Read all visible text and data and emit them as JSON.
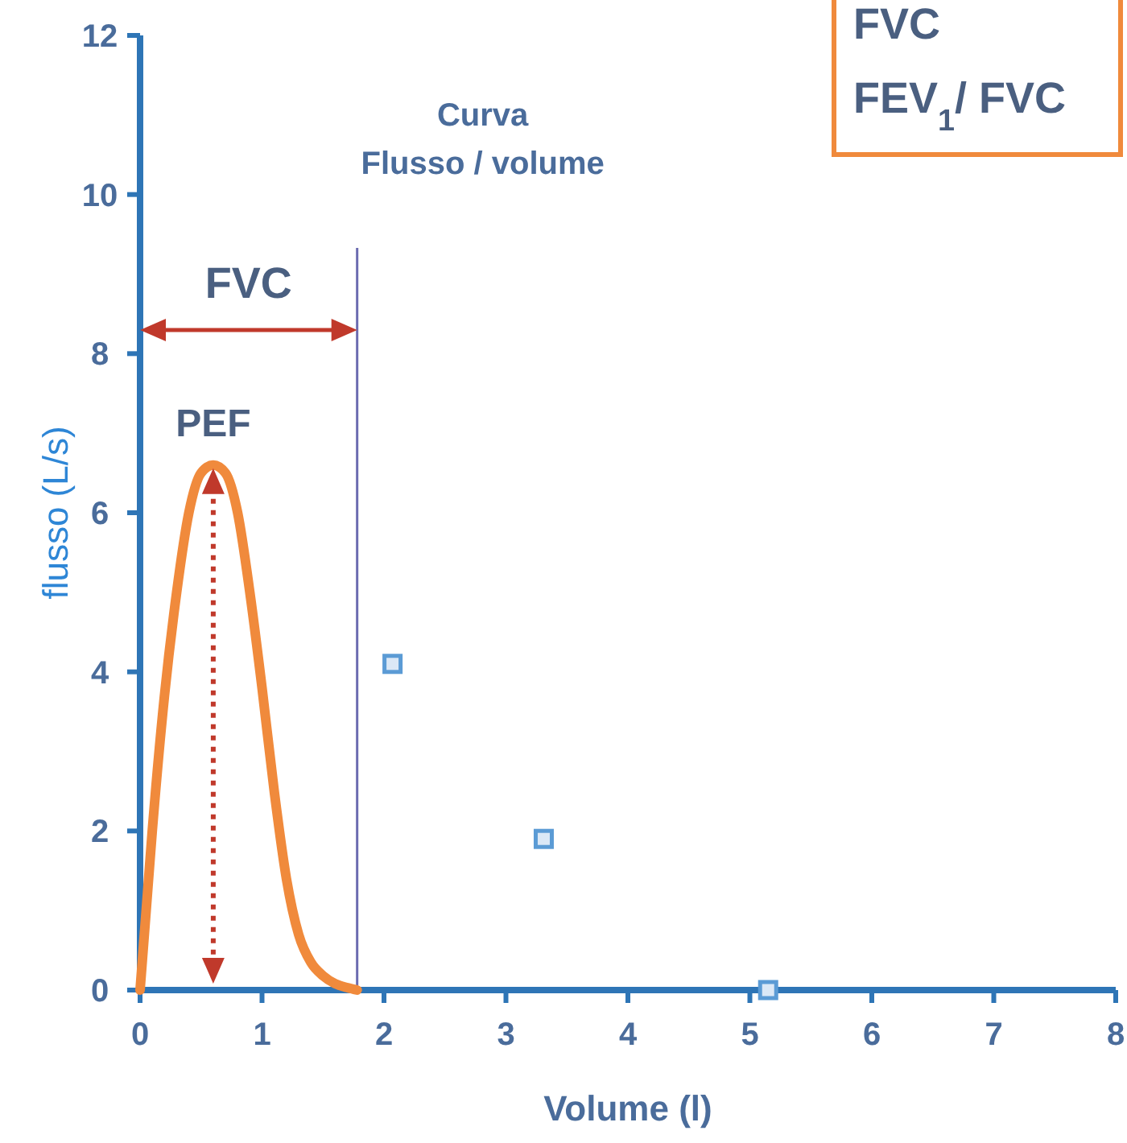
{
  "chart_data": {
    "type": "line",
    "xlabel": "Volume (l)",
    "ylabel": "flusso      (L/s)",
    "xlim": [
      0,
      8
    ],
    "ylim": [
      0,
      12
    ],
    "xticks": [
      0,
      1,
      2,
      3,
      4,
      5,
      6,
      7,
      8
    ],
    "yticks": [
      0,
      2,
      4,
      6,
      8,
      10,
      12
    ],
    "grid": false,
    "series": [
      {
        "color": "#f08a3c",
        "marker": "none",
        "x": [
          0,
          0.05,
          0.1,
          0.2,
          0.3,
          0.4,
          0.5,
          0.6,
          0.7,
          0.8,
          0.9,
          1.0,
          1.1,
          1.2,
          1.3,
          1.4,
          1.5,
          1.6,
          1.7,
          1.78
        ],
        "values": [
          0,
          1.0,
          2.0,
          3.7,
          5.0,
          6.0,
          6.5,
          6.6,
          6.5,
          6.0,
          5.0,
          3.8,
          2.5,
          1.4,
          0.7,
          0.35,
          0.18,
          0.08,
          0.03,
          0
        ]
      },
      {
        "type": "scatter",
        "color": "#5b9bd5",
        "marker": "square",
        "x": [
          2.07,
          3.31,
          5.15
        ],
        "values": [
          4.1,
          1.9,
          0
        ]
      }
    ],
    "ref_lines": [
      {
        "axis": "x",
        "value": 1.78,
        "label": "Curva\nFlusso / volume",
        "color": "#6b6bb0"
      }
    ],
    "annotations": [
      "FVC",
      {
        "text": "PEF",
        "x": 0.6,
        "y": 6.6
      },
      "FVC\nFEV$_{1}$/ FVC"
    ]
  }
}
